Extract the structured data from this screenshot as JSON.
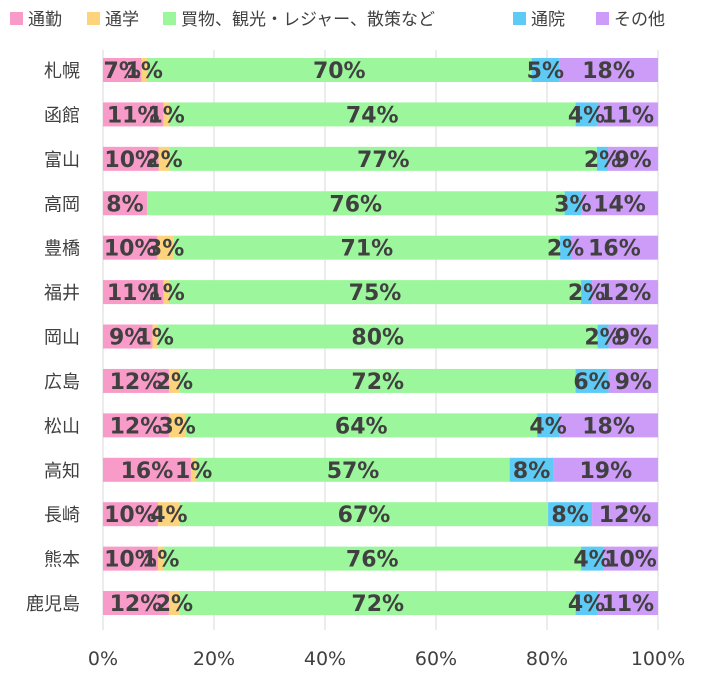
{
  "chart_data": {
    "type": "bar",
    "orientation": "horizontal",
    "stacked": "percent",
    "categories": [
      "札幌",
      "函館",
      "富山",
      "高岡",
      "豊橋",
      "福井",
      "岡山",
      "広島",
      "松山",
      "高知",
      "長崎",
      "熊本",
      "鹿児島"
    ],
    "series": [
      {
        "name": "通勤",
        "color": "#f99bc8",
        "values": [
          7,
          11,
          10,
          8,
          10,
          11,
          9,
          12,
          12,
          16,
          10,
          10,
          12
        ],
        "labels": [
          "7%",
          "11%",
          "10%",
          "8%",
          "10%",
          "11%",
          "9%",
          "12%",
          "12%",
          "16%",
          "10%",
          "10%",
          "12%"
        ]
      },
      {
        "name": "通学",
        "color": "#fdd37b",
        "values": [
          1,
          1,
          2,
          0,
          3,
          1,
          1,
          2,
          3,
          1,
          4,
          1,
          2
        ],
        "labels": [
          "1%",
          "1%",
          "2%",
          "",
          "3%",
          "1%",
          "1%",
          "2%",
          "3%",
          "1%",
          "4%",
          "1%",
          "2%"
        ]
      },
      {
        "name": "買物、観光・レジャー、散策など",
        "color": "#9cf79c",
        "values": [
          70,
          74,
          77,
          76,
          71,
          75,
          80,
          72,
          64,
          57,
          67,
          76,
          72
        ],
        "labels": [
          "70%",
          "74%",
          "77%",
          "76%",
          "71%",
          "75%",
          "80%",
          "72%",
          "64%",
          "57%",
          "67%",
          "76%",
          "72%"
        ]
      },
      {
        "name": "通院",
        "color": "#5ecbf7",
        "values": [
          5,
          4,
          2,
          3,
          2,
          2,
          2,
          6,
          4,
          8,
          8,
          4,
          4
        ],
        "labels": [
          "5%",
          "4%",
          "2%",
          "3%",
          "2%",
          "2%",
          "2%",
          "6%",
          "4%",
          "8%",
          "8%",
          "4%",
          "4%"
        ]
      },
      {
        "name": "その他",
        "color": "#cc9cf8",
        "values": [
          18,
          11,
          9,
          14,
          16,
          12,
          9,
          9,
          18,
          19,
          12,
          10,
          11
        ],
        "labels": [
          "18%",
          "11%",
          "9%",
          "14%",
          "16%",
          "12%",
          "9%",
          "9%",
          "18%",
          "19%",
          "12%",
          "10%",
          "11%"
        ]
      }
    ],
    "x_ticks": [
      "0%",
      "20%",
      "40%",
      "60%",
      "80%",
      "100%"
    ],
    "xlim": [
      0,
      100
    ],
    "grid": "vertical",
    "legend_position": "top"
  }
}
